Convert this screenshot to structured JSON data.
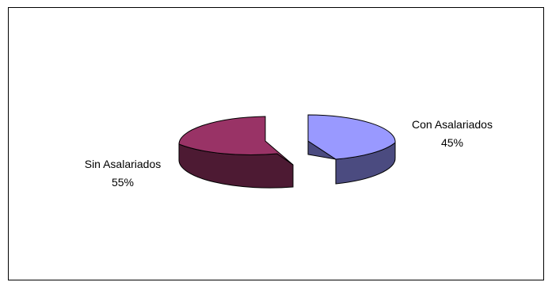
{
  "chart_data": {
    "type": "pie",
    "style": "3d-exploded",
    "title": "",
    "slices": [
      {
        "label": "Con Asalariados",
        "percent_label": "45%",
        "value": 45,
        "top_color": "#9999ff",
        "side_color": "#4b4b80"
      },
      {
        "label": "Sin Asalariados",
        "percent_label": "55%",
        "value": 55,
        "top_color": "#993366",
        "side_color": "#4d1a33"
      }
    ],
    "legend": "none",
    "data_labels": "outside"
  }
}
